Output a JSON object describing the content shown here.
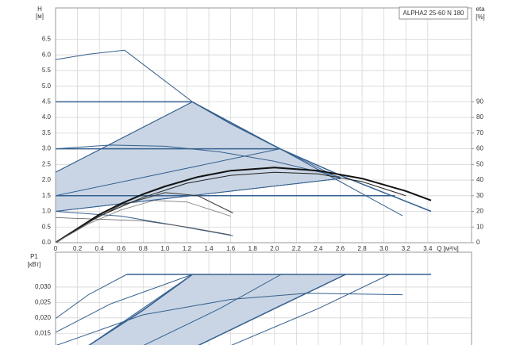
{
  "chart_data": [
    {
      "type": "line",
      "title": "ALPHA2 25-60 N 180",
      "y_label": "H",
      "y_unit": "[м]",
      "y2_label": "eta",
      "y2_unit": "[%]",
      "x_label": "Q [м³/ч]",
      "xlim": [
        0,
        3.8
      ],
      "xticks": [
        0,
        0.2,
        0.4,
        0.6,
        0.8,
        {
          "value": 1,
          "label": "1.0"
        },
        1.2,
        1.4,
        1.6,
        1.8,
        {
          "value": 2,
          "label": "2.0"
        },
        2.2,
        2.4,
        2.6,
        2.8,
        {
          "value": 3,
          "label": "3.0"
        },
        3.2,
        3.4
      ],
      "ylim": [
        0,
        7.5
      ],
      "yticks": [
        {
          "value": 0,
          "label": "0.0"
        },
        0.5,
        {
          "value": 1,
          "label": "1.0"
        },
        1.5,
        {
          "value": 2,
          "label": "2.0"
        },
        2.5,
        {
          "value": 3,
          "label": "3.0"
        },
        3.5,
        {
          "value": 4,
          "label": "4.0"
        },
        4.5,
        {
          "value": 5,
          "label": "5.0"
        },
        5.5,
        {
          "value": 6,
          "label": "6.0"
        },
        6.5
      ],
      "y2lim": [
        0,
        150
      ],
      "y2ticks": [
        0,
        10,
        20,
        30,
        40,
        50,
        60,
        70,
        80,
        90
      ],
      "grid": true,
      "series": [
        {
          "x": [
            0,
            1.25,
            2.05,
            2.6,
            0
          ],
          "values": [
            2.25,
            4.5,
            3.0,
            2.05,
            1.0
          ],
          "color": "#35608f",
          "fill": "#c9d5e4",
          "width": 1
        },
        {
          "x": [
            0,
            0.3,
            0.63,
            1.25,
            2.05,
            2.6,
            3.17
          ],
          "values": [
            5.85,
            6.02,
            6.15,
            4.5,
            3.0,
            1.95,
            0.86
          ],
          "color": "#35608f",
          "width": 1
        },
        {
          "x": [
            1.25,
            1.6,
            2.05,
            2.6,
            3.0,
            3.43
          ],
          "values": [
            4.5,
            3.8,
            3.0,
            2.15,
            1.6,
            1.0
          ],
          "color": "#35608f",
          "width": 1.5
        },
        {
          "x": [
            0,
            1.25
          ],
          "values": [
            4.5,
            4.5
          ],
          "color": "#35608f",
          "width": 1.5
        },
        {
          "x": [
            0,
            2.05
          ],
          "values": [
            3.0,
            3.0
          ],
          "color": "#35608f",
          "width": 1.5
        },
        {
          "x": [
            0,
            3.1
          ],
          "values": [
            1.5,
            1.5
          ],
          "color": "#35608f",
          "width": 1.5
        },
        {
          "x": [
            0,
            1.25
          ],
          "values": [
            2.25,
            4.5
          ],
          "color": "#35608f",
          "width": 1
        },
        {
          "x": [
            0,
            2.05
          ],
          "values": [
            1.5,
            3.0
          ],
          "color": "#35608f",
          "width": 1
        },
        {
          "x": [
            0,
            2.6
          ],
          "values": [
            1.0,
            2.05
          ],
          "color": "#35608f",
          "width": 1
        },
        {
          "x": [
            0,
            0.5,
            1.0,
            1.5,
            2.0,
            2.6
          ],
          "values": [
            3.0,
            3.12,
            3.08,
            2.9,
            2.6,
            2.1
          ],
          "color": "#35608f",
          "width": 1
        },
        {
          "x": [
            0,
            0.6,
            1.1,
            1.62
          ],
          "values": [
            1.0,
            0.85,
            0.55,
            0.22
          ],
          "color": "#35608f",
          "width": 1
        },
        {
          "x": [
            0,
            0.8,
            1.2,
            1.6
          ],
          "values": [
            0.8,
            0.7,
            0.5,
            0.25
          ],
          "color": "#555555",
          "width": 0.8
        },
        {
          "x": [
            0,
            0.2,
            0.4,
            0.6,
            0.8,
            1.0,
            1.3,
            1.6,
            2.0,
            2.4,
            2.8,
            3.2,
            3.43
          ],
          "values": [
            0,
            9,
            18,
            25,
            31,
            36,
            42,
            46,
            48,
            46,
            41,
            33,
            27
          ],
          "color": "#111111",
          "width": 2,
          "axis": "y2"
        },
        {
          "x": [
            0,
            0.4,
            0.8,
            1.2,
            1.6,
            2.0,
            2.4,
            2.8,
            3.2
          ],
          "values": [
            0,
            17,
            29,
            38,
            43,
            45,
            44,
            39,
            30
          ],
          "color": "#222222",
          "width": 1,
          "axis": "y2"
        },
        {
          "x": [
            0,
            0.3,
            0.6,
            1.0,
            1.3,
            1.62
          ],
          "values": [
            0,
            13,
            24,
            32,
            30,
            19
          ],
          "color": "#333333",
          "width": 1,
          "axis": "y2"
        },
        {
          "x": [
            0,
            0.3,
            0.6,
            0.9,
            1.2,
            1.6
          ],
          "values": [
            0,
            12,
            21,
            27,
            26,
            17
          ],
          "color": "#777777",
          "width": 0.8,
          "axis": "y2"
        }
      ]
    },
    {
      "type": "line",
      "y_label": "P1",
      "y_unit": "[кВт]",
      "ylim": [
        0.0112,
        0.0413
      ],
      "yticks": [
        {
          "value": 0.015,
          "label": "0,015"
        },
        {
          "value": 0.02,
          "label": "0,020"
        },
        {
          "value": 0.025,
          "label": "0,025"
        },
        {
          "value": 0.03,
          "label": "0,030"
        }
      ],
      "grid": true,
      "series": [
        {
          "x": [
            0.3,
            1.25,
            2.65,
            1.3
          ],
          "values": [
            0.011,
            0.0341,
            0.0341,
            0.011
          ],
          "color": "#35608f",
          "fill": "#c9d5e4",
          "width": 1
        },
        {
          "x": [
            0.65,
            3.43
          ],
          "values": [
            0.0341,
            0.0341
          ],
          "color": "#35608f",
          "width": 1.5
        },
        {
          "x": [
            0,
            0.3,
            0.65
          ],
          "values": [
            0.0198,
            0.0275,
            0.0341
          ],
          "color": "#35608f",
          "width": 1
        },
        {
          "x": [
            0,
            0.5,
            1.25
          ],
          "values": [
            0.0153,
            0.0245,
            0.0341
          ],
          "color": "#35608f",
          "width": 1
        },
        {
          "x": [
            0.3,
            0.8,
            1.25
          ],
          "values": [
            0.011,
            0.0225,
            0.0341
          ],
          "color": "#35608f",
          "width": 1.5
        },
        {
          "x": [
            0.8,
            1.5,
            2.06
          ],
          "values": [
            0.011,
            0.023,
            0.0341
          ],
          "color": "#35608f",
          "width": 1
        },
        {
          "x": [
            1.3,
            2.0,
            2.65
          ],
          "values": [
            0.011,
            0.023,
            0.0341
          ],
          "color": "#35608f",
          "width": 1.5
        },
        {
          "x": [
            1.6,
            2.4,
            3.05
          ],
          "values": [
            0.011,
            0.023,
            0.0341
          ],
          "color": "#35608f",
          "width": 1
        },
        {
          "x": [
            0,
            0.8,
            1.6,
            2.3,
            3.17
          ],
          "values": [
            0.011,
            0.021,
            0.026,
            0.028,
            0.0275
          ],
          "color": "#35608f",
          "width": 1
        }
      ]
    }
  ]
}
